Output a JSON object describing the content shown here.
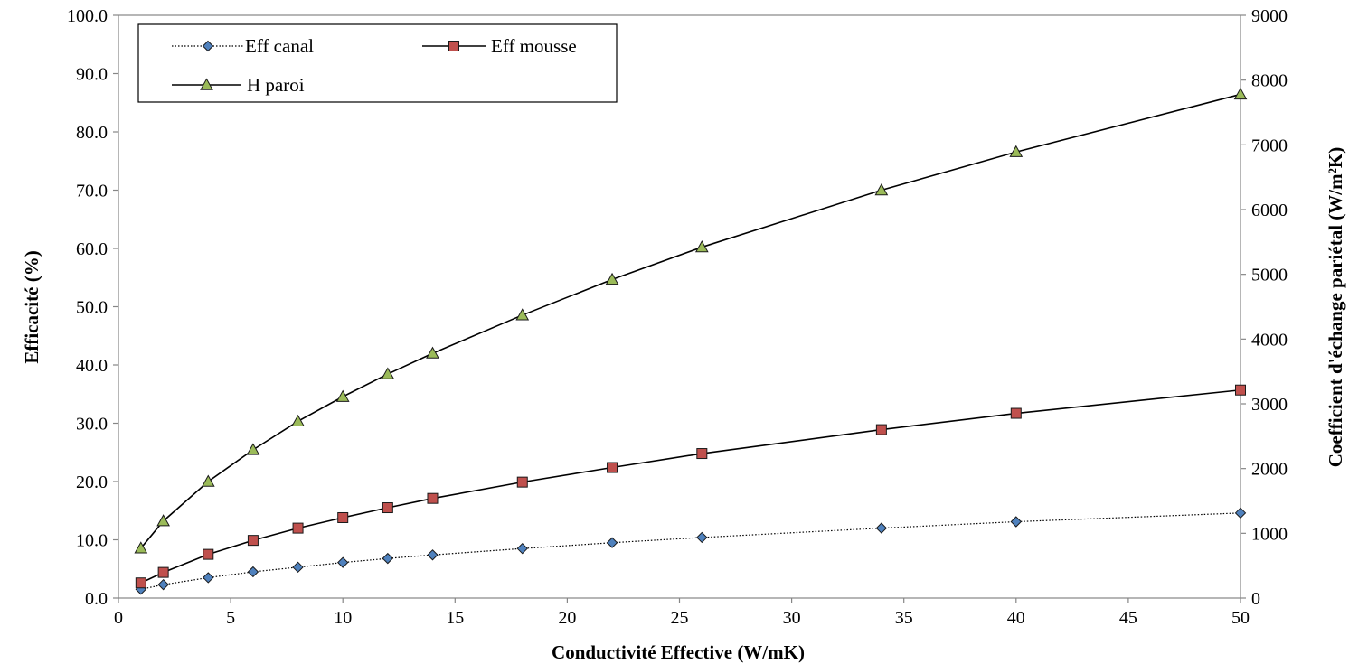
{
  "chart_data": {
    "type": "line",
    "xlabel": "Conductivité Effective (W/mK)",
    "ylabel": "Efficacité (%)",
    "y2label": "Coefficient d'échange pariétal (W/m²K)",
    "xlim": [
      0,
      50
    ],
    "ylim": [
      0,
      100
    ],
    "y2lim": [
      0,
      9000
    ],
    "xticks": [
      0,
      5,
      10,
      15,
      20,
      25,
      30,
      35,
      40,
      45,
      50
    ],
    "yticks": [
      "0.0",
      "10.0",
      "20.0",
      "30.0",
      "40.0",
      "50.0",
      "60.0",
      "70.0",
      "80.0",
      "90.0",
      "100.0"
    ],
    "y2ticks": [
      0,
      1000,
      2000,
      3000,
      4000,
      5000,
      6000,
      7000,
      8000,
      9000
    ],
    "grid": false,
    "legend_position": "top-left",
    "x": [
      1,
      2,
      4,
      6,
      8,
      10,
      12,
      14,
      18,
      22,
      26,
      34,
      40,
      50
    ],
    "series": [
      {
        "name": "Eff canal",
        "axis": "left",
        "marker": "diamond",
        "line": "dotted",
        "color": "#4f81bd",
        "values": [
          1.5,
          2.3,
          3.5,
          4.5,
          5.3,
          6.1,
          6.8,
          7.4,
          8.5,
          9.5,
          10.4,
          12.0,
          13.1,
          14.6
        ]
      },
      {
        "name": "Eff mousse",
        "axis": "left",
        "marker": "square",
        "line": "solid",
        "color": "#c0504d",
        "values": [
          2.6,
          4.4,
          7.5,
          9.9,
          12.0,
          13.8,
          15.5,
          17.1,
          19.9,
          22.4,
          24.8,
          28.9,
          31.7,
          35.7
        ]
      },
      {
        "name": "H paroi",
        "axis": "right",
        "marker": "triangle",
        "line": "solid",
        "color": "#9bbb59",
        "values": [
          770,
          1190,
          1800,
          2290,
          2730,
          3110,
          3460,
          3780,
          4370,
          4920,
          5420,
          6300,
          6890,
          7780
        ]
      }
    ]
  }
}
